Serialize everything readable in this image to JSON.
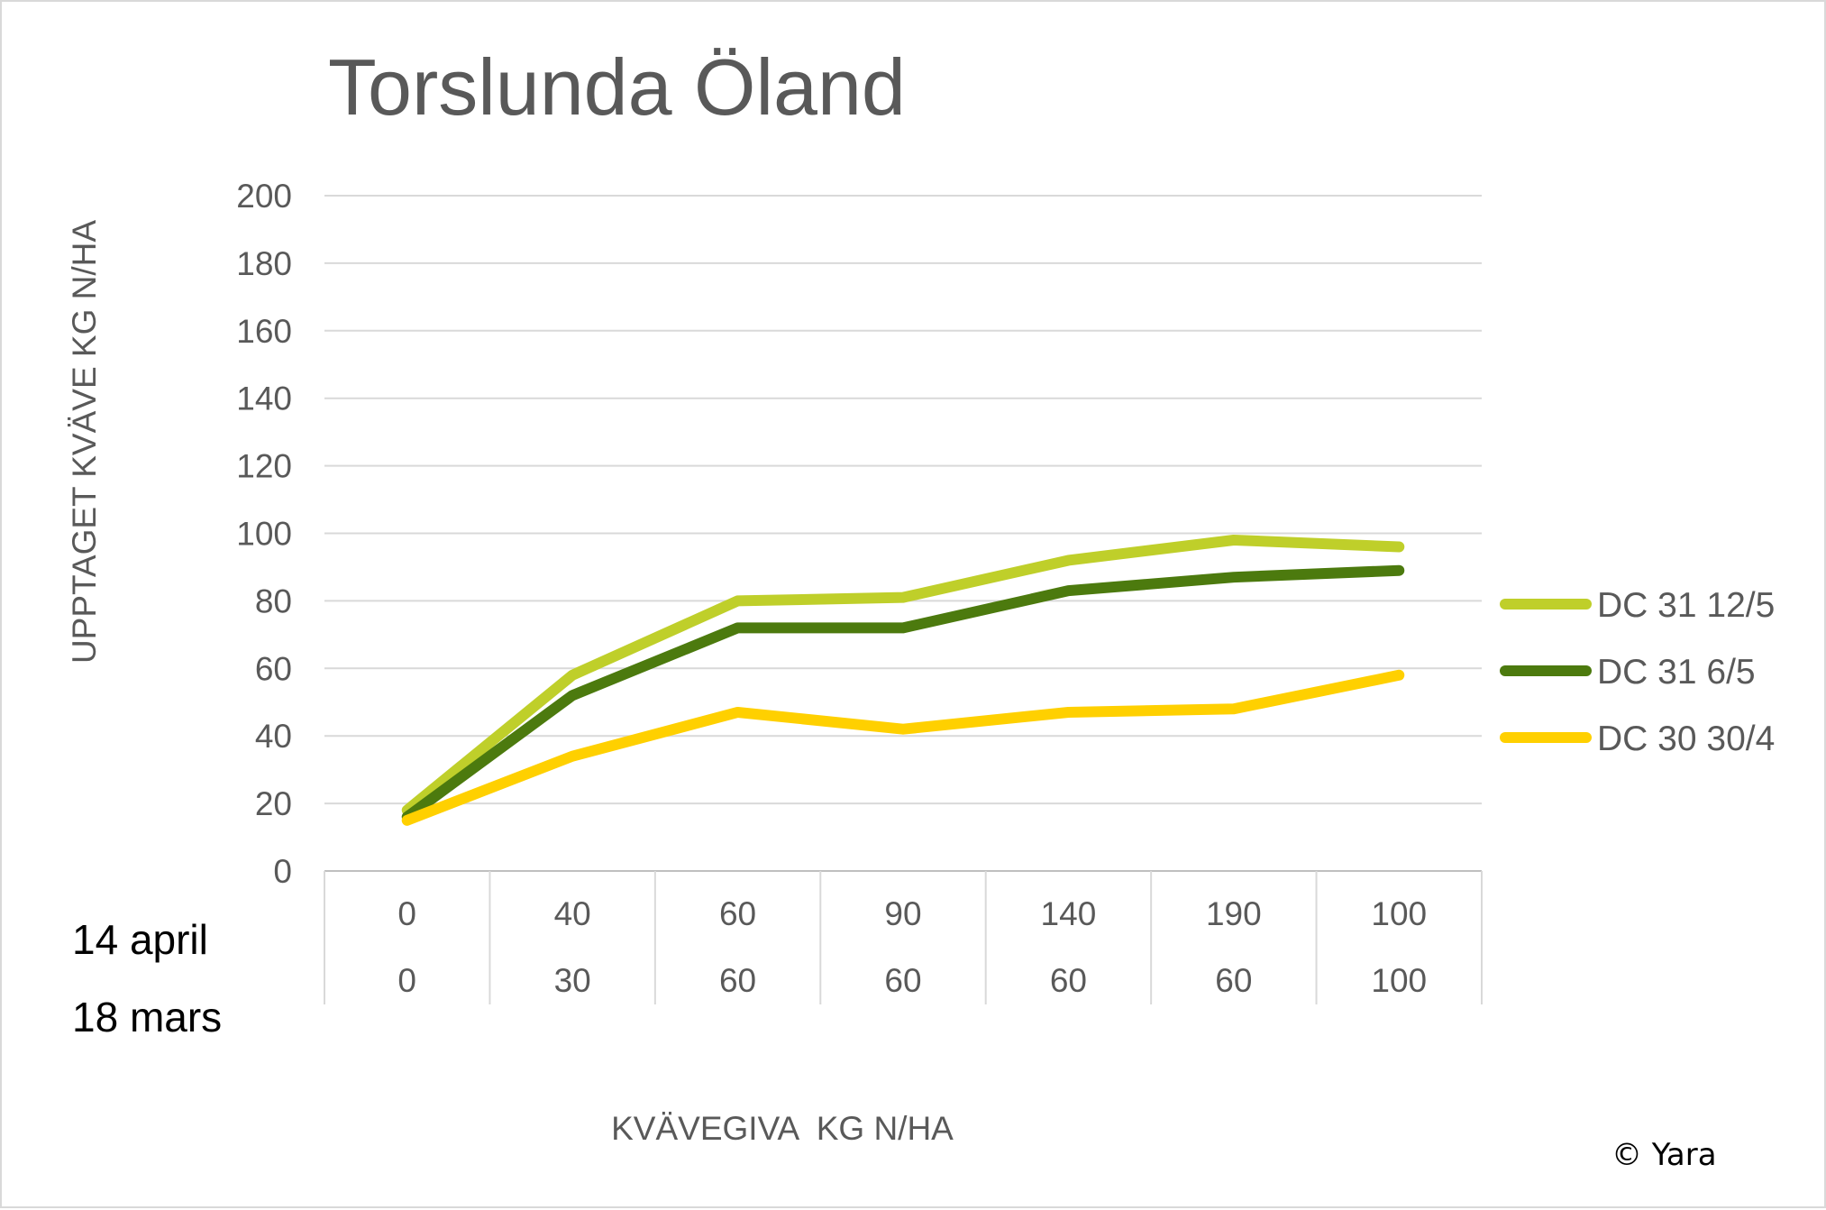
{
  "chart_data": {
    "type": "line",
    "title": "Torslunda Öland",
    "ylabel": "UPPTAGET KVÄVE KG N/HA",
    "xlabel": "KVÄVEGIVA  KG N/HA",
    "ylim": [
      0,
      200
    ],
    "yticks": [
      0,
      20,
      40,
      60,
      80,
      100,
      120,
      140,
      160,
      180,
      200
    ],
    "grid": true,
    "legend_position": "right",
    "category_rows": [
      {
        "label": "14 april",
        "values": [
          "0",
          "40",
          "60",
          "90",
          "140",
          "190",
          "100"
        ]
      },
      {
        "label": "18 mars",
        "values": [
          "0",
          "30",
          "60",
          "60",
          "60",
          "60",
          "100"
        ]
      }
    ],
    "series": [
      {
        "name": "DC 31 12/5",
        "color": "#bfcf2a",
        "values": [
          18,
          58,
          80,
          81,
          92,
          98,
          96
        ]
      },
      {
        "name": "DC 31 6/5",
        "color": "#4c7a0e",
        "values": [
          16,
          52,
          72,
          72,
          83,
          87,
          89
        ]
      },
      {
        "name": "DC 30 30/4",
        "color": "#ffd000",
        "values": [
          15,
          34,
          47,
          42,
          47,
          48,
          58
        ]
      }
    ],
    "copyright": "© Yara"
  }
}
